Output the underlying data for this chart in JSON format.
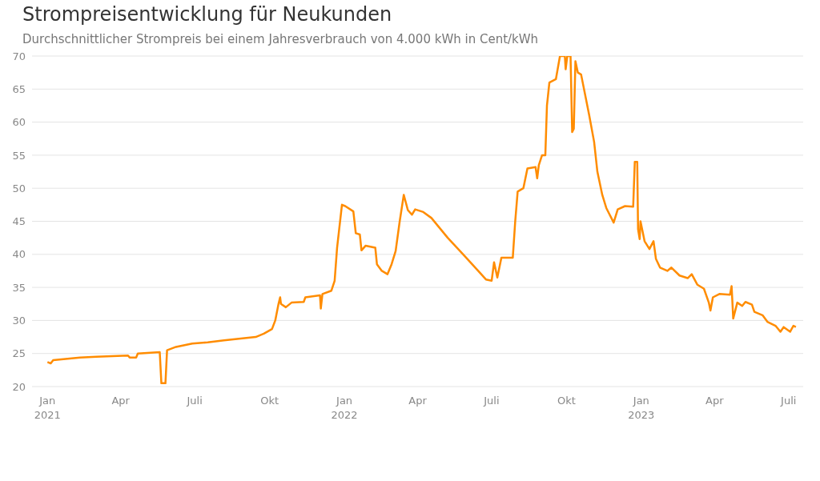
{
  "chart_data": {
    "type": "line",
    "title": "Strompreisentwicklung für Neukunden",
    "subtitle": "Durchschnittlicher Strompreis bei einem Jahresverbrauch von 4.000 kWh in Cent/kWh",
    "x": [
      "2021-01-01",
      "2021-01-05",
      "2021-01-08",
      "2021-02-10",
      "2021-03-02",
      "2021-04-10",
      "2021-04-12",
      "2021-04-20",
      "2021-04-22",
      "2021-05-19",
      "2021-05-21",
      "2021-05-26",
      "2021-05-28",
      "2021-06-08",
      "2021-06-28",
      "2021-07-17",
      "2021-08-06",
      "2021-09-14",
      "2021-09-24",
      "2021-10-04",
      "2021-10-08",
      "2021-10-12",
      "2021-10-14",
      "2021-10-15",
      "2021-10-21",
      "2021-10-28",
      "2021-11-12",
      "2021-11-14",
      "2021-12-02",
      "2021-12-03",
      "2021-12-05",
      "2021-12-16",
      "2021-12-20",
      "2021-12-23",
      "2021-12-29",
      "2022-01-02",
      "2022-01-12",
      "2022-01-15",
      "2022-01-20",
      "2022-01-22",
      "2022-01-27",
      "2022-02-08",
      "2022-02-10",
      "2022-02-16",
      "2022-02-23",
      "2022-02-28",
      "2022-03-05",
      "2022-03-10",
      "2022-03-15",
      "2022-03-20",
      "2022-03-25",
      "2022-03-29",
      "2022-04-08",
      "2022-04-18",
      "2022-05-08",
      "2022-05-27",
      "2022-06-16",
      "2022-06-24",
      "2022-07-01",
      "2022-07-04",
      "2022-07-08",
      "2022-07-13",
      "2022-07-27",
      "2022-07-30",
      "2022-08-02",
      "2022-08-09",
      "2022-08-14",
      "2022-08-24",
      "2022-08-26",
      "2022-08-28",
      "2022-09-01",
      "2022-09-05",
      "2022-09-07",
      "2022-09-10",
      "2022-09-18",
      "2022-09-23",
      "2022-09-29",
      "2022-09-30",
      "2022-10-02",
      "2022-10-06",
      "2022-10-08",
      "2022-10-10",
      "2022-10-12",
      "2022-10-15",
      "2022-10-19",
      "2022-10-25",
      "2022-10-29",
      "2022-11-04",
      "2022-11-08",
      "2022-11-14",
      "2022-11-19",
      "2022-11-28",
      "2022-12-03",
      "2022-12-12",
      "2022-12-22",
      "2022-12-24",
      "2022-12-27",
      "2022-12-28",
      "2022-12-30",
      "2022-12-31",
      "2023-01-05",
      "2023-01-11",
      "2023-01-16",
      "2023-01-19",
      "2023-01-24",
      "2023-02-02",
      "2023-02-07",
      "2023-02-17",
      "2023-02-27",
      "2023-03-04",
      "2023-03-11",
      "2023-03-19",
      "2023-03-25",
      "2023-03-27",
      "2023-03-30",
      "2023-04-07",
      "2023-04-20",
      "2023-04-22",
      "2023-04-24",
      "2023-04-29",
      "2023-05-05",
      "2023-05-09",
      "2023-05-17",
      "2023-05-20",
      "2023-05-30",
      "2023-06-05",
      "2023-06-15",
      "2023-06-21",
      "2023-06-25",
      "2023-07-03",
      "2023-07-07",
      "2023-07-10"
    ],
    "series": [
      {
        "color": "#ff8c00",
        "values": [
          23.7,
          23.5,
          24.0,
          24.4,
          24.5,
          24.7,
          24.4,
          24.4,
          25.0,
          25.2,
          20.5,
          20.5,
          25.5,
          26.0,
          26.5,
          26.7,
          27.0,
          27.5,
          28.0,
          28.7,
          30.0,
          32.5,
          33.5,
          32.5,
          32.0,
          32.7,
          32.8,
          33.5,
          33.8,
          31.8,
          34.0,
          34.5,
          36.0,
          41.0,
          47.5,
          47.3,
          46.5,
          43.2,
          43.0,
          40.6,
          41.3,
          41.0,
          38.5,
          37.5,
          37.0,
          38.5,
          40.5,
          45.0,
          49.0,
          46.7,
          46.0,
          46.8,
          46.4,
          45.5,
          42.5,
          40.0,
          37.3,
          36.2,
          36.0,
          38.8,
          36.5,
          39.5,
          39.5,
          45.0,
          49.5,
          50.0,
          53.0,
          53.2,
          51.5,
          53.5,
          55.0,
          55.0,
          62.5,
          66.0,
          66.5,
          70.0,
          70.0,
          68.0,
          70.0,
          70.0,
          58.5,
          59.0,
          69.2,
          67.5,
          67.2,
          63.5,
          61.0,
          57.0,
          52.5,
          49.0,
          47.0,
          44.8,
          46.8,
          47.3,
          47.2,
          54.0,
          54.0,
          43.8,
          42.3,
          45.0,
          42.0,
          40.8,
          42.0,
          39.3,
          38.0,
          37.5,
          38.0,
          36.8,
          36.4,
          37.0,
          35.4,
          34.8,
          32.7,
          31.5,
          33.5,
          34.0,
          33.9,
          35.2,
          30.3,
          32.7,
          32.2,
          32.8,
          32.4,
          31.3,
          30.8,
          29.8,
          29.2,
          28.3,
          29.0,
          28.3,
          29.2,
          29.0
        ]
      }
    ],
    "xlim": [
      "2020-12-13",
      "2023-07-19"
    ],
    "xticks": [
      {
        "value": "2021-01-01",
        "label": "Jan\n2021"
      },
      {
        "value": "2021-04-01",
        "label": "Apr"
      },
      {
        "value": "2021-07-01",
        "label": "Juli"
      },
      {
        "value": "2021-10-01",
        "label": "Okt"
      },
      {
        "value": "2022-01-01",
        "label": "Jan\n2022"
      },
      {
        "value": "2022-04-01",
        "label": "Apr"
      },
      {
        "value": "2022-07-01",
        "label": "Juli"
      },
      {
        "value": "2022-10-01",
        "label": "Okt"
      },
      {
        "value": "2023-01-01",
        "label": "Jan\n2023"
      },
      {
        "value": "2023-04-01",
        "label": "Apr"
      },
      {
        "value": "2023-07-01",
        "label": "Juli"
      }
    ],
    "ylim": [
      20,
      70
    ],
    "yticks": [
      20,
      25,
      30,
      35,
      40,
      45,
      50,
      55,
      60,
      65,
      70
    ],
    "grid": "y",
    "marker": "none",
    "line_style": "solid"
  }
}
